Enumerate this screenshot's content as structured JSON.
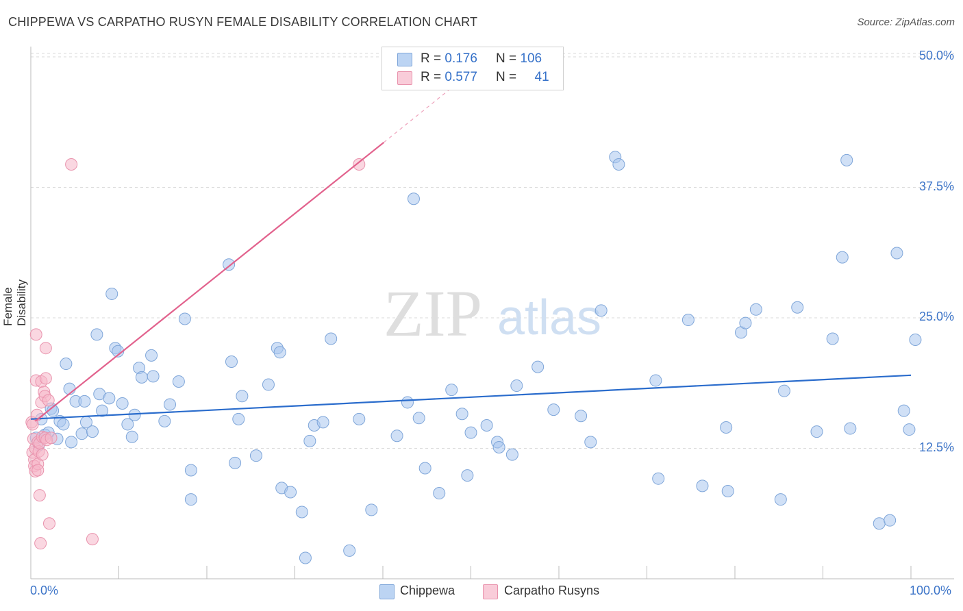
{
  "header": {
    "title": "CHIPPEWA VS CARPATHO RUSYN FEMALE DISABILITY CORRELATION CHART",
    "source": "Source: ZipAtlas.com"
  },
  "watermark": {
    "zip": "ZIP",
    "atlas": "atlas"
  },
  "legend": {
    "rows": [
      {
        "r_label": "R = ",
        "r_value": "0.176",
        "n_label": "N = ",
        "n_value": "106"
      },
      {
        "r_label": "R = ",
        "r_value": "0.577",
        "n_label": "N = ",
        "n_value": "41"
      }
    ]
  },
  "colors": {
    "blue_fill": "#a9c7ef",
    "blue_stroke": "#7fa6d9",
    "blue_line": "#2a6ccc",
    "pink_fill": "#f6b6c8",
    "pink_stroke": "#e993ad",
    "pink_line": "#e2628d",
    "axis_text": "#3c74c8",
    "grid": "#dadada"
  },
  "chart_data": {
    "type": "scatter",
    "title": "CHIPPEWA VS CARPATHO RUSYN FEMALE DISABILITY CORRELATION CHART",
    "xlabel": "",
    "ylabel": "Female Disability",
    "xlim": [
      0,
      100
    ],
    "ylim": [
      0,
      52
    ],
    "x_tick_labels": [
      "0.0%",
      "100.0%"
    ],
    "y_ticks": [
      12.5,
      25.0,
      37.5,
      50.0
    ],
    "y_tick_labels": [
      "12.5%",
      "25.0%",
      "37.5%",
      "50.0%"
    ],
    "legend_position": "bottom-center",
    "series": [
      {
        "name": "Chippewa",
        "r": 0.176,
        "n": 106,
        "trend": {
          "x": [
            0,
            100
          ],
          "y": [
            15.3,
            19.5
          ]
        },
        "points": [
          [
            0.6,
            13.5
          ],
          [
            0.9,
            12.8
          ],
          [
            1.2,
            15.3
          ],
          [
            1.6,
            13.8
          ],
          [
            2.0,
            14.0
          ],
          [
            2.3,
            16.3
          ],
          [
            2.5,
            16.1
          ],
          [
            3.0,
            13.4
          ],
          [
            3.3,
            15.1
          ],
          [
            3.7,
            14.8
          ],
          [
            4.0,
            20.6
          ],
          [
            4.4,
            18.2
          ],
          [
            4.6,
            13.1
          ],
          [
            5.1,
            17.0
          ],
          [
            5.8,
            13.9
          ],
          [
            6.1,
            17.0
          ],
          [
            6.3,
            15.0
          ],
          [
            7.0,
            14.1
          ],
          [
            7.5,
            23.4
          ],
          [
            7.8,
            17.7
          ],
          [
            8.1,
            16.1
          ],
          [
            8.9,
            17.3
          ],
          [
            9.2,
            27.3
          ],
          [
            9.6,
            22.1
          ],
          [
            9.9,
            21.8
          ],
          [
            10.4,
            16.8
          ],
          [
            11.0,
            14.8
          ],
          [
            11.5,
            13.6
          ],
          [
            11.8,
            15.7
          ],
          [
            12.3,
            20.2
          ],
          [
            12.6,
            19.3
          ],
          [
            13.7,
            21.4
          ],
          [
            13.9,
            19.4
          ],
          [
            15.2,
            15.1
          ],
          [
            15.8,
            16.7
          ],
          [
            16.8,
            18.9
          ],
          [
            17.5,
            24.9
          ],
          [
            18.2,
            10.4
          ],
          [
            18.2,
            7.6
          ],
          [
            22.5,
            30.1
          ],
          [
            22.8,
            20.8
          ],
          [
            23.2,
            11.1
          ],
          [
            23.6,
            15.3
          ],
          [
            24.0,
            17.5
          ],
          [
            25.6,
            11.8
          ],
          [
            27.0,
            18.6
          ],
          [
            28.0,
            22.1
          ],
          [
            28.3,
            21.7
          ],
          [
            28.5,
            8.7
          ],
          [
            29.5,
            8.3
          ],
          [
            30.8,
            6.4
          ],
          [
            31.2,
            2.0
          ],
          [
            31.7,
            13.2
          ],
          [
            32.2,
            14.7
          ],
          [
            33.2,
            15.0
          ],
          [
            34.1,
            23.0
          ],
          [
            36.2,
            2.7
          ],
          [
            37.3,
            15.3
          ],
          [
            38.7,
            6.6
          ],
          [
            41.6,
            13.7
          ],
          [
            42.8,
            16.9
          ],
          [
            43.5,
            36.4
          ],
          [
            44.1,
            15.4
          ],
          [
            44.8,
            10.6
          ],
          [
            46.4,
            8.2
          ],
          [
            47.8,
            18.1
          ],
          [
            49.0,
            15.8
          ],
          [
            49.6,
            9.9
          ],
          [
            50.0,
            14.0
          ],
          [
            51.8,
            14.7
          ],
          [
            53.0,
            13.1
          ],
          [
            53.2,
            12.6
          ],
          [
            54.7,
            11.9
          ],
          [
            55.2,
            18.5
          ],
          [
            57.6,
            20.3
          ],
          [
            59.4,
            16.2
          ],
          [
            62.5,
            15.6
          ],
          [
            63.6,
            13.1
          ],
          [
            64.8,
            25.7
          ],
          [
            66.4,
            40.4
          ],
          [
            66.8,
            39.7
          ],
          [
            71.0,
            19.0
          ],
          [
            71.3,
            9.6
          ],
          [
            74.7,
            24.8
          ],
          [
            76.3,
            8.9
          ],
          [
            79.0,
            14.5
          ],
          [
            79.2,
            8.4
          ],
          [
            80.7,
            23.6
          ],
          [
            81.2,
            24.5
          ],
          [
            82.4,
            25.8
          ],
          [
            85.2,
            7.6
          ],
          [
            85.6,
            18.0
          ],
          [
            87.1,
            26.0
          ],
          [
            89.3,
            14.1
          ],
          [
            91.1,
            23.0
          ],
          [
            92.2,
            30.8
          ],
          [
            92.7,
            40.1
          ],
          [
            93.1,
            14.4
          ],
          [
            96.4,
            5.3
          ],
          [
            97.6,
            5.6
          ],
          [
            98.4,
            31.2
          ],
          [
            99.2,
            16.1
          ],
          [
            99.8,
            14.3
          ],
          [
            100.5,
            22.9
          ]
        ]
      },
      {
        "name": "Carpatho Rusyns",
        "r": 0.577,
        "n": 41,
        "trend": {
          "x": [
            0.5,
            40.1
          ],
          "y": [
            15.1,
            41.8
          ]
        },
        "trend_dashed": {
          "x": [
            40.1,
            48.5
          ],
          "y": [
            41.8,
            47.5
          ]
        },
        "points": [
          [
            0.1,
            15.0
          ],
          [
            0.2,
            14.8
          ],
          [
            0.2,
            12.1
          ],
          [
            0.3,
            13.4
          ],
          [
            0.4,
            11.4
          ],
          [
            0.4,
            10.8
          ],
          [
            0.5,
            12.5
          ],
          [
            0.5,
            10.3
          ],
          [
            0.6,
            23.4
          ],
          [
            0.6,
            19.0
          ],
          [
            0.7,
            15.7
          ],
          [
            0.8,
            13.1
          ],
          [
            0.8,
            11.0
          ],
          [
            0.8,
            10.4
          ],
          [
            0.9,
            12.2
          ],
          [
            1.0,
            13.0
          ],
          [
            1.0,
            8.0
          ],
          [
            1.1,
            3.4
          ],
          [
            1.2,
            18.9
          ],
          [
            1.2,
            16.9
          ],
          [
            1.3,
            13.6
          ],
          [
            1.3,
            11.9
          ],
          [
            1.5,
            17.9
          ],
          [
            1.6,
            17.5
          ],
          [
            1.6,
            13.5
          ],
          [
            1.7,
            22.1
          ],
          [
            1.7,
            19.2
          ],
          [
            1.8,
            13.3
          ],
          [
            2.0,
            17.1
          ],
          [
            2.1,
            5.3
          ],
          [
            2.3,
            13.5
          ],
          [
            4.6,
            39.7
          ],
          [
            7.0,
            3.8
          ],
          [
            37.3,
            39.7
          ]
        ]
      }
    ]
  }
}
